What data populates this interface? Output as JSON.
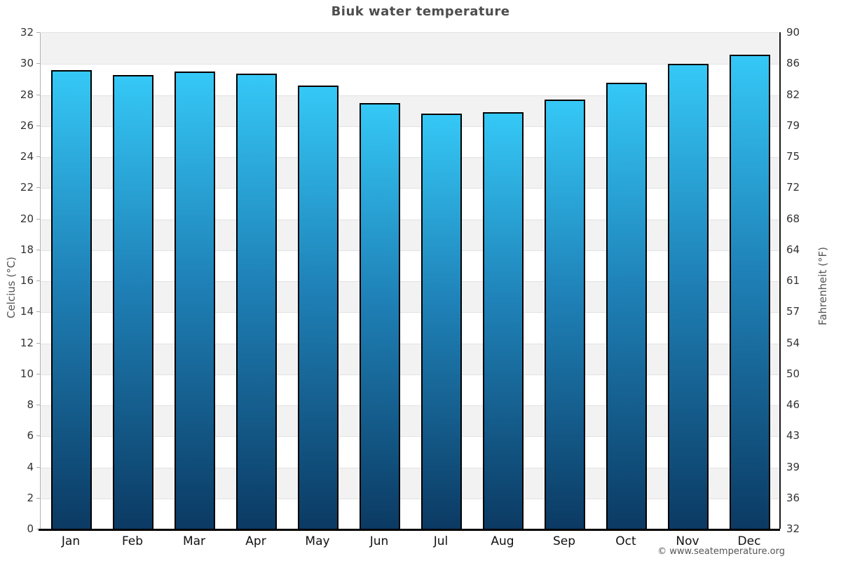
{
  "title": "Biuk water temperature",
  "footer": "© www.seatemperature.org",
  "chart_data": {
    "type": "bar",
    "categories": [
      "Jan",
      "Feb",
      "Mar",
      "Apr",
      "May",
      "Jun",
      "Jul",
      "Aug",
      "Sep",
      "Oct",
      "Nov",
      "Dec"
    ],
    "values": [
      29.6,
      29.3,
      29.5,
      29.4,
      28.6,
      27.5,
      26.8,
      26.9,
      27.7,
      28.8,
      30.0,
      30.6
    ],
    "unit": "°C",
    "title": "Biuk water temperature",
    "left_axis": {
      "label": "Celcius (°C)",
      "ticks": [
        0,
        2,
        4,
        6,
        8,
        10,
        12,
        14,
        16,
        18,
        20,
        22,
        24,
        26,
        28,
        30,
        32
      ],
      "range": [
        0,
        32
      ]
    },
    "right_axis": {
      "label": "Fahrenheit (°F)",
      "ticks": [
        "32",
        "36",
        "39",
        "43",
        "46",
        "50",
        "54",
        "57",
        "61",
        "64",
        "68",
        "72",
        "75",
        "79",
        "82",
        "86",
        "90"
      ]
    },
    "grid": "alternating horizontal bands every 2°C",
    "legend": "none"
  },
  "colors": {
    "bar_gradient_top": "#35c8f6",
    "bar_gradient_mid": "#1f82b8",
    "bar_gradient_bottom": "#0b3a63",
    "bar_border": "#000000",
    "band_gray": "#f2f2f2",
    "band_white": "#ffffff",
    "grid_line": "#e2e2e2",
    "x_axis": "#000000",
    "title_text": "#4d4d4d",
    "tick_text": "#333333",
    "month_text": "#111111",
    "axis_label_text": "#555555",
    "footer_text": "#555555"
  }
}
